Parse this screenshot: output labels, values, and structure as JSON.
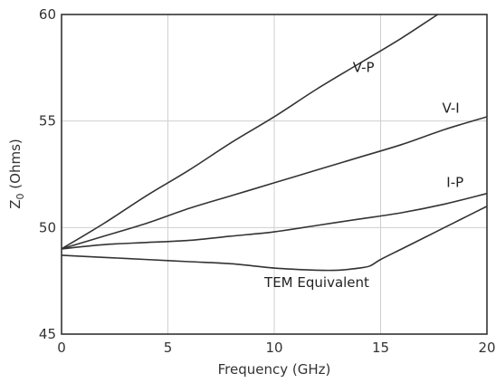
{
  "chart_data": {
    "type": "line",
    "xlabel": "Frequency (GHz)",
    "ylabel_main": "Z",
    "ylabel_sub": "0",
    "ylabel_rest": " (Ohms)",
    "xlim": [
      0,
      20
    ],
    "ylim": [
      45,
      60
    ],
    "x_ticks": [
      0,
      5,
      10,
      15,
      20
    ],
    "y_ticks": [
      45,
      50,
      55,
      60
    ],
    "x_tick_labels": [
      "0",
      "5",
      "10",
      "15",
      "20"
    ],
    "y_tick_labels": [
      "45",
      "50",
      "55",
      "60"
    ],
    "grid": true,
    "colors": {
      "line": "#333333",
      "grid": "#cfcfcf"
    },
    "series": [
      {
        "name": "V-P",
        "label_at": [
          14.2,
          57.3
        ],
        "x": [
          0,
          2,
          4,
          6,
          8,
          10,
          12,
          14,
          16,
          18,
          20
        ],
        "y": [
          49.0,
          50.2,
          51.5,
          52.7,
          54.0,
          55.2,
          56.5,
          57.7,
          58.9,
          60.2,
          61.4
        ]
      },
      {
        "name": "V-I",
        "label_at": [
          18.3,
          55.4
        ],
        "x": [
          0,
          2,
          4,
          6,
          8,
          10,
          12,
          14,
          16,
          18,
          20
        ],
        "y": [
          49.0,
          49.6,
          50.2,
          50.9,
          51.5,
          52.1,
          52.7,
          53.3,
          53.9,
          54.6,
          55.2
        ]
      },
      {
        "name": "I-P",
        "label_at": [
          18.5,
          51.9
        ],
        "x": [
          0,
          2,
          4,
          6,
          8,
          10,
          12,
          14,
          16,
          18,
          20
        ],
        "y": [
          49.0,
          49.2,
          49.3,
          49.4,
          49.6,
          49.8,
          50.1,
          50.4,
          50.7,
          51.1,
          51.6
        ]
      },
      {
        "name": "TEM Equivalent",
        "label_at": [
          12.0,
          47.2
        ],
        "x": [
          0,
          2,
          4,
          6,
          8,
          10,
          12,
          13,
          14,
          14.5,
          15,
          16,
          17,
          18,
          19,
          20
        ],
        "y": [
          48.7,
          48.6,
          48.5,
          48.4,
          48.3,
          48.1,
          48.0,
          48.0,
          48.1,
          48.2,
          48.5,
          49.0,
          49.5,
          50.0,
          50.5,
          51.0
        ]
      }
    ]
  }
}
